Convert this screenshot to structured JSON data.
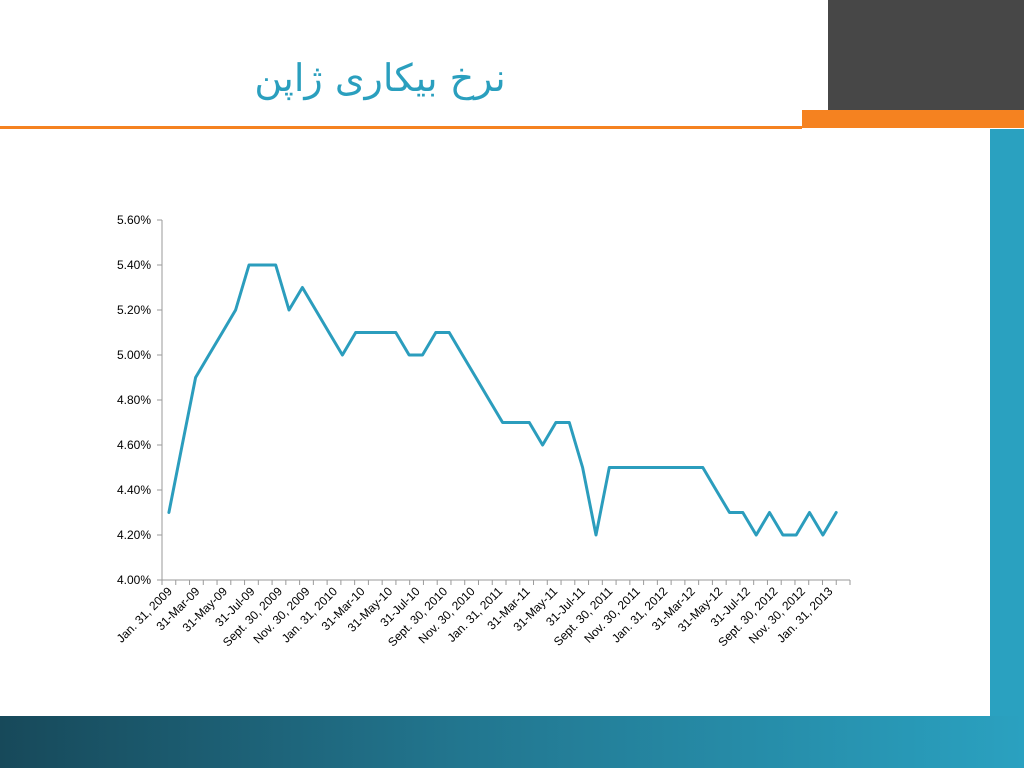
{
  "slide": {
    "title": "نرخ بیکاری ژاپن"
  },
  "colors": {
    "line": "#2b9dbd",
    "accent": "#f58220",
    "dark": "#474747",
    "teal": "#2aa1c0"
  },
  "chart_data": {
    "type": "line",
    "title": "",
    "xlabel": "",
    "ylabel": "",
    "ylim": [
      4.0,
      5.6
    ],
    "ytick_step": 0.2,
    "y_format": "percent_2dp",
    "grid": false,
    "legend": "none",
    "x_tick_labels": [
      "Jan. 31, 2009",
      "31-Mar-09",
      "31-May-09",
      "31-Jul-09",
      "Sept. 30, 2009",
      "Nov. 30, 2009",
      "Jan. 31, 2010",
      "31-Mar-10",
      "31-May-10",
      "31-Jul-10",
      "Sept. 30, 2010",
      "Nov. 30, 2010",
      "Jan. 31, 2011",
      "31-Mar-11",
      "31-May-11",
      "31-Jul-11",
      "Sept. 30, 2011",
      "Nov. 30, 2011",
      "Jan. 31, 2012",
      "31-Mar-12",
      "31-May-12",
      "31-Jul-12",
      "Sept. 30, 2012",
      "Nov. 30, 2012",
      "Jan. 31, 2013"
    ],
    "series": [
      {
        "values": [
          4.3,
          4.6,
          4.9,
          5.0,
          5.1,
          5.2,
          5.4,
          5.4,
          5.4,
          5.2,
          5.3,
          5.2,
          5.1,
          5.0,
          5.1,
          5.1,
          5.1,
          5.1,
          5.0,
          5.0,
          5.1,
          5.1,
          5.0,
          4.9,
          4.8,
          4.7,
          4.7,
          4.7,
          4.6,
          4.7,
          4.7,
          4.5,
          4.2,
          4.5,
          4.5,
          4.5,
          4.5,
          4.5,
          4.5,
          4.5,
          4.5,
          4.4,
          4.3,
          4.3,
          4.2,
          4.3,
          4.2,
          4.2,
          4.3,
          4.2,
          4.3
        ]
      }
    ]
  }
}
